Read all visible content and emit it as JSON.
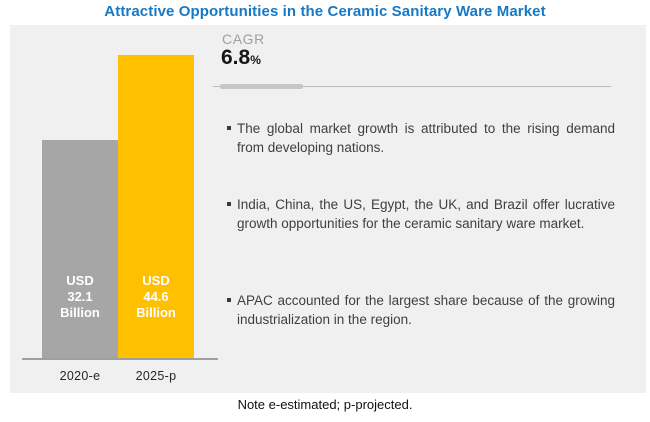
{
  "page": {
    "title": "Attractive Opportunities in the Ceramic Sanitary Ware Market",
    "note": "Note e-estimated; p-projected."
  },
  "cagr": {
    "label": "CAGR",
    "value": "6.8",
    "suffix": "%"
  },
  "insights": [
    {
      "text": "The global market growth is attributed to the rising demand from developing nations."
    },
    {
      "text": "India, China, the US, Egypt, the UK, and Brazil offer lucrative growth opportunities for the ceramic sanitary ware market."
    },
    {
      "text": "APAC accounted for the largest share because of the growing industrialization in the region."
    }
  ],
  "chart_data": {
    "type": "bar",
    "title": "Attractive Opportunities in the Ceramic Sanitary Ware Market",
    "categories": [
      "2020-e",
      "2025-p"
    ],
    "values": [
      32.1,
      44.6
    ],
    "unit": "USD Billion",
    "cagr_percent": 6.8,
    "bars": [
      {
        "category": "2020-e",
        "label_lines": [
          "USD",
          "32.1",
          "Billion"
        ],
        "color": "#a6a6a6"
      },
      {
        "category": "2025-p",
        "label_lines": [
          "USD",
          "44.6",
          "Billion"
        ],
        "color": "#ffc000"
      }
    ],
    "ylim": [
      0,
      44.6
    ],
    "grid": false,
    "legend": false,
    "note": "Note e-estimated; p-projected."
  },
  "colors": {
    "title_blue": "#1879c3",
    "bar_2020": "#a6a6a6",
    "bar_2025": "#ffc000",
    "panel_bg": "#f0f0f0",
    "bullet_text": "#3f3f3f"
  }
}
